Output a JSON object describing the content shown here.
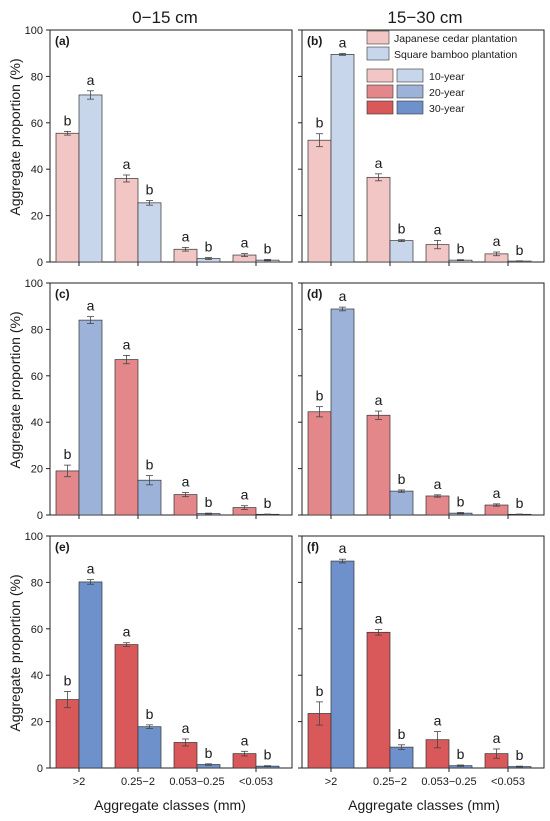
{
  "column_titles": [
    "0−15 cm",
    "15−30 cm"
  ],
  "ylabel": "Aggregate proportion (%)",
  "xlabel": "Aggregate classes (mm)",
  "legend": {
    "plantations": [
      {
        "name": "Japanese cedar plantation",
        "color": "#f2c6c4"
      },
      {
        "name": "Square bamboo plantation",
        "color": "#c8d6ec"
      }
    ],
    "ages": [
      {
        "name": "10-year",
        "colors": [
          "#f2c6c4",
          "#c8d6ec"
        ]
      },
      {
        "name": "20-year",
        "colors": [
          "#e3878b",
          "#9db2d8"
        ]
      },
      {
        "name": "30-year",
        "colors": [
          "#d9585a",
          "#6e91cc"
        ]
      }
    ]
  },
  "chart_data": [
    {
      "type": "bar",
      "panel": "(a)",
      "depth": "0−15 cm",
      "age": "10-year",
      "categories": [
        ">2",
        "0.25−2",
        "0.053−0.25",
        "<0.053"
      ],
      "ylim": [
        0,
        100
      ],
      "yticks": [
        0,
        20,
        40,
        60,
        80,
        100
      ],
      "colors": [
        "#f2c6c4",
        "#c8d6ec"
      ],
      "series": [
        {
          "name": "Japanese cedar plantation",
          "values": [
            55.5,
            36,
            5.5,
            3
          ],
          "errors": [
            0.8,
            1.5,
            0.8,
            0.6
          ],
          "labels": [
            "b",
            "a",
            "a",
            "a"
          ]
        },
        {
          "name": "Square bamboo plantation",
          "values": [
            72,
            25.5,
            1.5,
            0.8
          ],
          "errors": [
            1.8,
            1.0,
            0.4,
            0.3
          ],
          "labels": [
            "a",
            "b",
            "b",
            "b"
          ]
        }
      ]
    },
    {
      "type": "bar",
      "panel": "(b)",
      "depth": "15−30 cm",
      "age": "10-year",
      "categories": [
        ">2",
        "0.25−2",
        "0.053−0.25",
        "<0.053"
      ],
      "ylim": [
        0,
        100
      ],
      "yticks": [
        0,
        20,
        40,
        60,
        80,
        100
      ],
      "colors": [
        "#f2c6c4",
        "#c8d6ec"
      ],
      "series": [
        {
          "name": "Japanese cedar plantation",
          "values": [
            52.5,
            36.5,
            7.5,
            3.5
          ],
          "errors": [
            2.8,
            1.5,
            1.8,
            0.8
          ],
          "labels": [
            "b",
            "a",
            "a",
            "a"
          ]
        },
        {
          "name": "Square bamboo plantation",
          "values": [
            89.5,
            9.2,
            0.8,
            0.4
          ],
          "errors": [
            0.4,
            0.4,
            0.2,
            0.1
          ],
          "labels": [
            "a",
            "b",
            "b",
            "b"
          ]
        }
      ]
    },
    {
      "type": "bar",
      "panel": "(c)",
      "depth": "0−15 cm",
      "age": "20-year",
      "categories": [
        ">2",
        "0.25−2",
        "0.053−0.25",
        "<0.053"
      ],
      "ylim": [
        0,
        100
      ],
      "yticks": [
        0,
        20,
        40,
        60,
        80,
        100
      ],
      "colors": [
        "#e3878b",
        "#9db2d8"
      ],
      "series": [
        {
          "name": "Japanese cedar plantation",
          "values": [
            19,
            67,
            8.8,
            3.2
          ],
          "errors": [
            2.5,
            1.8,
            0.9,
            0.8
          ],
          "labels": [
            "b",
            "a",
            "a",
            "a"
          ]
        },
        {
          "name": "Square bamboo plantation",
          "values": [
            84,
            15,
            0.6,
            0.3
          ],
          "errors": [
            1.5,
            2.0,
            0.2,
            0.1
          ],
          "labels": [
            "a",
            "b",
            "b",
            "b"
          ]
        }
      ]
    },
    {
      "type": "bar",
      "panel": "(d)",
      "depth": "15−30 cm",
      "age": "20-year",
      "categories": [
        ">2",
        "0.25−2",
        "0.053−0.25",
        "<0.053"
      ],
      "ylim": [
        0,
        100
      ],
      "yticks": [
        0,
        20,
        40,
        60,
        80,
        100
      ],
      "colors": [
        "#e3878b",
        "#9db2d8"
      ],
      "series": [
        {
          "name": "Japanese cedar plantation",
          "values": [
            44.5,
            43,
            8.2,
            4.3
          ],
          "errors": [
            2.2,
            1.8,
            0.5,
            0.5
          ],
          "labels": [
            "b",
            "a",
            "a",
            "a"
          ]
        },
        {
          "name": "Square bamboo plantation",
          "values": [
            88.8,
            10.3,
            0.8,
            0.3
          ],
          "errors": [
            0.8,
            0.5,
            0.3,
            0.1
          ],
          "labels": [
            "a",
            "b",
            "b",
            "b"
          ]
        }
      ]
    },
    {
      "type": "bar",
      "panel": "(e)",
      "depth": "0−15 cm",
      "age": "30-year",
      "categories": [
        ">2",
        "0.25−2",
        "0.053−0.25",
        "<0.053"
      ],
      "ylim": [
        0,
        100
      ],
      "yticks": [
        0,
        20,
        40,
        60,
        80,
        100
      ],
      "colors": [
        "#d9585a",
        "#6e91cc"
      ],
      "series": [
        {
          "name": "Japanese cedar plantation",
          "values": [
            29.5,
            53.2,
            11,
            6.2
          ],
          "errors": [
            3.5,
            0.8,
            1.5,
            1.0
          ],
          "labels": [
            "b",
            "a",
            "a",
            "a"
          ]
        },
        {
          "name": "Square bamboo plantation",
          "values": [
            80.2,
            17.8,
            1.5,
            0.8
          ],
          "errors": [
            1.0,
            0.8,
            0.3,
            0.2
          ],
          "labels": [
            "a",
            "b",
            "b",
            "b"
          ]
        }
      ]
    },
    {
      "type": "bar",
      "panel": "(f)",
      "depth": "15−30 cm",
      "age": "30-year",
      "categories": [
        ">2",
        "0.25−2",
        "0.053−0.25",
        "<0.053"
      ],
      "ylim": [
        0,
        100
      ],
      "yticks": [
        0,
        20,
        40,
        60,
        80,
        100
      ],
      "colors": [
        "#d9585a",
        "#6e91cc"
      ],
      "series": [
        {
          "name": "Japanese cedar plantation",
          "values": [
            23.5,
            58.5,
            12.2,
            6.2
          ],
          "errors": [
            5.0,
            1.2,
            3.5,
            2.0
          ],
          "labels": [
            "b",
            "a",
            "a",
            "a"
          ]
        },
        {
          "name": "Square bamboo plantation",
          "values": [
            89.2,
            9,
            1,
            0.6
          ],
          "errors": [
            0.8,
            1.0,
            0.3,
            0.2
          ],
          "labels": [
            "a",
            "b",
            "b",
            "b"
          ]
        }
      ]
    }
  ]
}
